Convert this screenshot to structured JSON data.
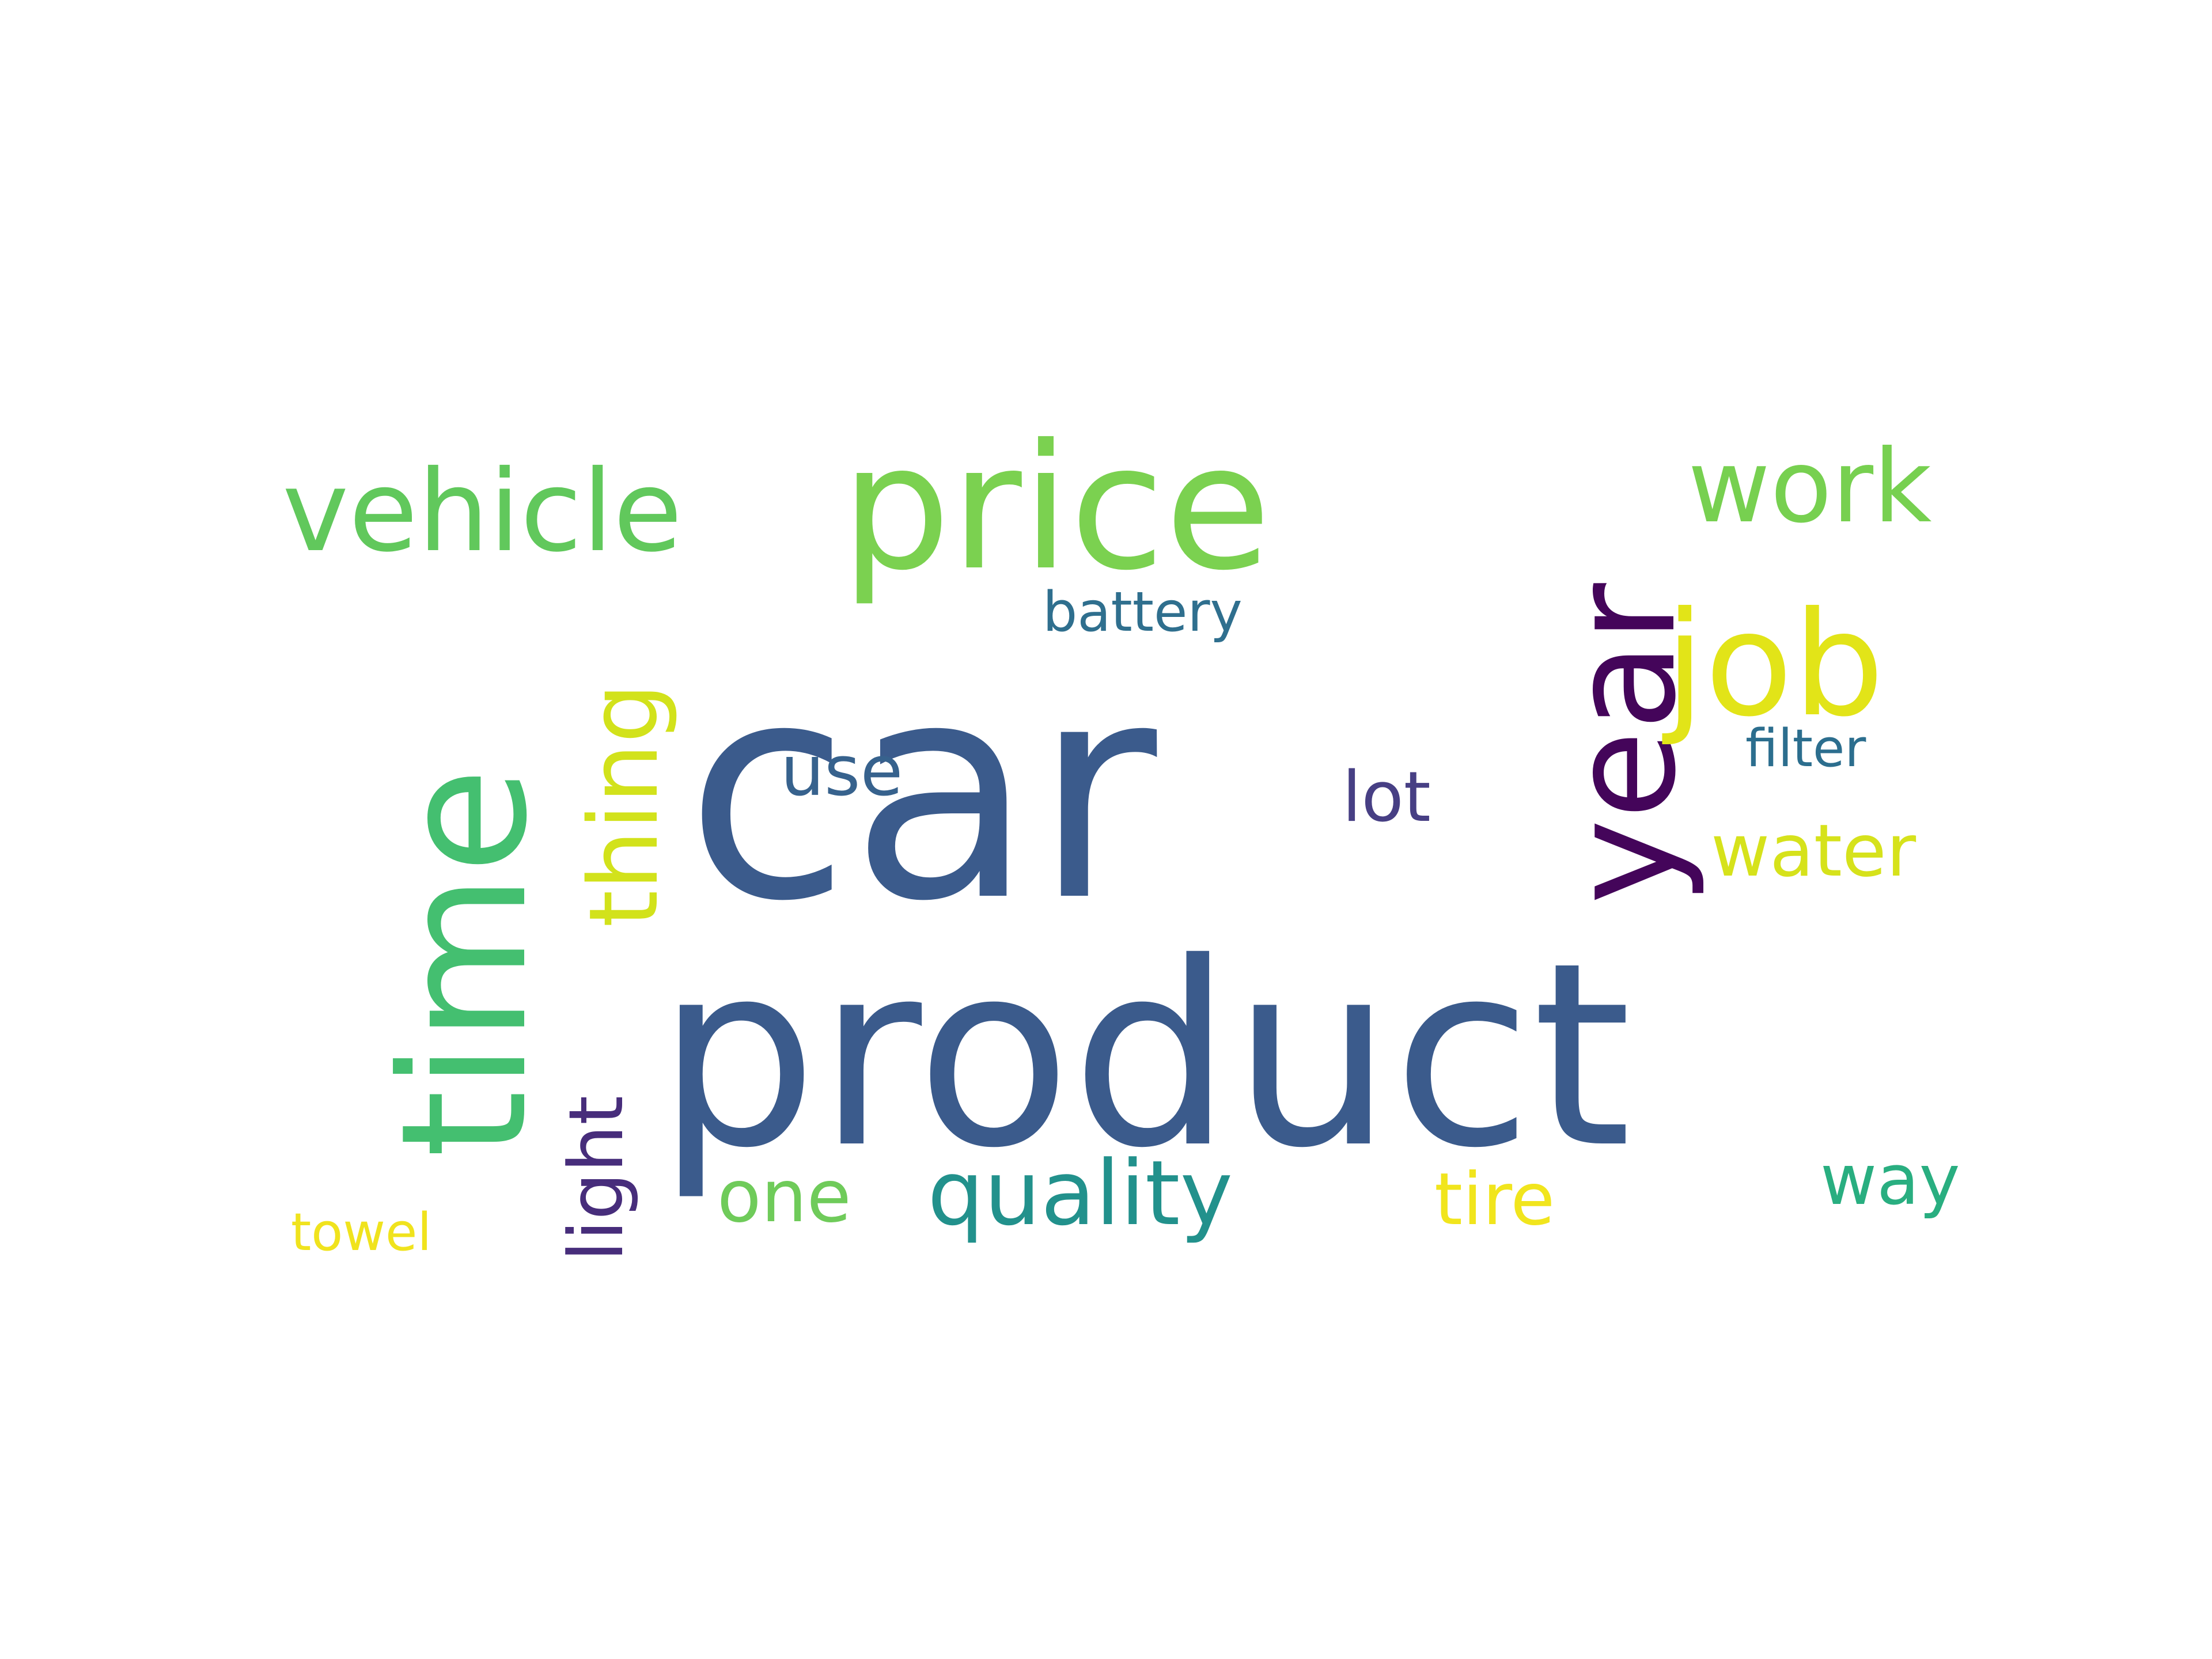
{
  "word_cloud": {
    "words": [
      {
        "text": "car",
        "color": "#3b5b8c"
      },
      {
        "text": "product",
        "color": "#3b5b8c"
      },
      {
        "text": "price",
        "color": "#7bd150"
      },
      {
        "text": "time",
        "color": "#44bf70"
      },
      {
        "text": "year",
        "color": "#44055a"
      },
      {
        "text": "vehicle",
        "color": "#61c85c"
      },
      {
        "text": "job",
        "color": "#e2e418"
      },
      {
        "text": "work",
        "color": "#77d050"
      },
      {
        "text": "thing",
        "color": "#d2e21b"
      },
      {
        "text": "light",
        "color": "#472d7b"
      },
      {
        "text": "quality",
        "color": "#22918c"
      },
      {
        "text": "use",
        "color": "#37628d"
      },
      {
        "text": "lot",
        "color": "#473f84"
      },
      {
        "text": "water",
        "color": "#d6e21b"
      },
      {
        "text": "one",
        "color": "#6fcb5a"
      },
      {
        "text": "tire",
        "color": "#f1e51d"
      },
      {
        "text": "way",
        "color": "#29ae80"
      },
      {
        "text": "battery",
        "color": "#2f6f8e"
      },
      {
        "text": "filter",
        "color": "#2c6e8e"
      },
      {
        "text": "towel",
        "color": "#f0e31d"
      }
    ]
  }
}
